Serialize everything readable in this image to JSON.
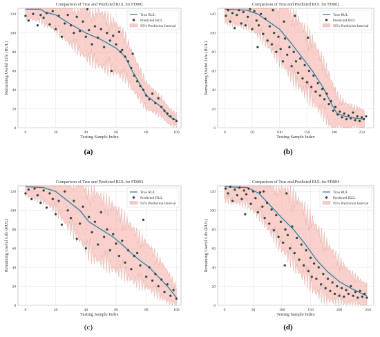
{
  "colors": {
    "true_line": "#2f7fa3",
    "pred_marker": "#3b3b3b",
    "pred_edge": "#1c5b4a",
    "band_fill": "#f4a9a0",
    "band_edge": "#cf8e86",
    "grid": "#e6e6e6"
  },
  "chart_data": [
    {
      "type": "scatter",
      "panel_label": "(a)",
      "title": "Comparison of True and Predicted RUL for FD001",
      "xlabel": "Testing Sample Index",
      "ylabel": "Remaining Useful Life (RUL)",
      "xlim": [
        -5,
        103
      ],
      "ylim": [
        0,
        126
      ],
      "xticks": [
        0,
        20,
        40,
        60,
        80,
        100
      ],
      "yticks": [
        0,
        20,
        40,
        60,
        80,
        100,
        120
      ],
      "grid": true,
      "legend_position": "top-right",
      "legend": [
        "True RUL",
        "Predicted RUL",
        "95% Prediction Interval"
      ],
      "true_rul": [
        [
          0,
          125
        ],
        [
          10,
          125
        ],
        [
          13,
          122
        ],
        [
          20,
          119
        ],
        [
          30,
          109
        ],
        [
          40,
          100
        ],
        [
          50,
          93
        ],
        [
          60,
          84
        ],
        [
          66,
          75
        ],
        [
          70,
          62
        ],
        [
          75,
          48
        ],
        [
          80,
          34
        ],
        [
          85,
          28
        ],
        [
          90,
          22
        ],
        [
          95,
          12
        ],
        [
          100,
          8
        ]
      ],
      "interval_halfwidth": [
        [
          0,
          8
        ],
        [
          15,
          12
        ],
        [
          25,
          16
        ],
        [
          35,
          20
        ],
        [
          45,
          24
        ],
        [
          55,
          24
        ],
        [
          65,
          20
        ],
        [
          75,
          14
        ],
        [
          85,
          10
        ],
        [
          100,
          6
        ]
      ],
      "predicted": [
        [
          0,
          118
        ],
        [
          2,
          113
        ],
        [
          5,
          120
        ],
        [
          8,
          108
        ],
        [
          10,
          119
        ],
        [
          12,
          116
        ],
        [
          14,
          121
        ],
        [
          16,
          109
        ],
        [
          18,
          123
        ],
        [
          20,
          104
        ],
        [
          22,
          118
        ],
        [
          24,
          96
        ],
        [
          26,
          110
        ],
        [
          28,
          119
        ],
        [
          30,
          108
        ],
        [
          32,
          100
        ],
        [
          34,
          117
        ],
        [
          36,
          102
        ],
        [
          38,
          112
        ],
        [
          40,
          96
        ],
        [
          41,
          125
        ],
        [
          42,
          103
        ],
        [
          44,
          88
        ],
        [
          46,
          107
        ],
        [
          48,
          95
        ],
        [
          50,
          104
        ],
        [
          52,
          85
        ],
        [
          54,
          100
        ],
        [
          56,
          92
        ],
        [
          57,
          60
        ],
        [
          58,
          97
        ],
        [
          60,
          88
        ],
        [
          62,
          101
        ],
        [
          63,
          80
        ],
        [
          64,
          82
        ],
        [
          66,
          75
        ],
        [
          68,
          70
        ],
        [
          70,
          63
        ],
        [
          71,
          78
        ],
        [
          72,
          55
        ],
        [
          74,
          49
        ],
        [
          76,
          44
        ],
        [
          78,
          40
        ],
        [
          80,
          34
        ],
        [
          82,
          30
        ],
        [
          84,
          36
        ],
        [
          86,
          26
        ],
        [
          88,
          31
        ],
        [
          90,
          22
        ],
        [
          92,
          18
        ],
        [
          94,
          15
        ],
        [
          96,
          12
        ],
        [
          98,
          9
        ],
        [
          100,
          7
        ]
      ]
    },
    {
      "type": "scatter",
      "panel_label": "(b)",
      "title": "Comparison of True and Predicted RUL for FD002",
      "xlabel": "Testing Sample Index",
      "ylabel": "Remaining Useful Life (RUL)",
      "xlim": [
        -13,
        272
      ],
      "ylim": [
        0,
        126
      ],
      "xticks": [
        0,
        50,
        100,
        150,
        200,
        250
      ],
      "yticks": [
        0,
        20,
        40,
        60,
        80,
        100,
        120
      ],
      "grid": true,
      "legend_position": "top-right",
      "legend": [
        "True RUL",
        "Predicted RUL",
        "95% Prediction Interval"
      ],
      "true_rul": [
        [
          0,
          125
        ],
        [
          40,
          124
        ],
        [
          60,
          120
        ],
        [
          80,
          112
        ],
        [
          100,
          104
        ],
        [
          120,
          90
        ],
        [
          140,
          75
        ],
        [
          160,
          60
        ],
        [
          180,
          42
        ],
        [
          195,
          25
        ],
        [
          205,
          15
        ],
        [
          220,
          12
        ],
        [
          240,
          10
        ],
        [
          255,
          9
        ]
      ],
      "interval_halfwidth": [
        [
          0,
          12
        ],
        [
          40,
          15
        ],
        [
          70,
          20
        ],
        [
          100,
          28
        ],
        [
          130,
          30
        ],
        [
          160,
          28
        ],
        [
          190,
          22
        ],
        [
          220,
          12
        ],
        [
          255,
          8
        ]
      ],
      "predicted": [
        [
          2,
          118
        ],
        [
          6,
          124
        ],
        [
          10,
          112
        ],
        [
          14,
          121
        ],
        [
          18,
          105
        ],
        [
          22,
          119
        ],
        [
          26,
          124
        ],
        [
          30,
          110
        ],
        [
          34,
          122
        ],
        [
          38,
          108
        ],
        [
          42,
          117
        ],
        [
          46,
          125
        ],
        [
          50,
          104
        ],
        [
          54,
          123
        ],
        [
          58,
          113
        ],
        [
          60,
          85
        ],
        [
          62,
          108
        ],
        [
          66,
          120
        ],
        [
          70,
          99
        ],
        [
          74,
          115
        ],
        [
          78,
          92
        ],
        [
          82,
          107
        ],
        [
          86,
          88
        ],
        [
          88,
          124
        ],
        [
          90,
          100
        ],
        [
          94,
          80
        ],
        [
          98,
          96
        ],
        [
          102,
          83
        ],
        [
          106,
          70
        ],
        [
          108,
          112
        ],
        [
          110,
          94
        ],
        [
          114,
          77
        ],
        [
          118,
          85
        ],
        [
          122,
          65
        ],
        [
          126,
          80
        ],
        [
          128,
          118
        ],
        [
          130,
          70
        ],
        [
          134,
          58
        ],
        [
          138,
          73
        ],
        [
          142,
          52
        ],
        [
          146,
          66
        ],
        [
          150,
          48
        ],
        [
          152,
          95
        ],
        [
          154,
          60
        ],
        [
          158,
          43
        ],
        [
          162,
          55
        ],
        [
          166,
          38
        ],
        [
          170,
          47
        ],
        [
          174,
          34
        ],
        [
          178,
          41
        ],
        [
          182,
          30
        ],
        [
          186,
          36
        ],
        [
          190,
          25
        ],
        [
          194,
          28
        ],
        [
          198,
          18
        ],
        [
          202,
          22
        ],
        [
          206,
          14
        ],
        [
          210,
          17
        ],
        [
          214,
          11
        ],
        [
          218,
          15
        ],
        [
          222,
          9
        ],
        [
          226,
          13
        ],
        [
          230,
          10
        ],
        [
          234,
          16
        ],
        [
          238,
          8
        ],
        [
          242,
          12
        ],
        [
          246,
          7
        ],
        [
          250,
          11
        ],
        [
          254,
          9
        ],
        [
          258,
          12
        ]
      ]
    },
    {
      "type": "scatter",
      "panel_label": "(c)",
      "title": "Comparison of True and Predicted RUL for FD003",
      "xlabel": "Testing Sample Index",
      "ylabel": "Remaining Useful Life (RUL)",
      "xlim": [
        -5,
        103
      ],
      "ylim": [
        0,
        126
      ],
      "xticks": [
        0,
        20,
        40,
        60,
        80,
        100
      ],
      "yticks": [
        0,
        20,
        40,
        60,
        80,
        100,
        120
      ],
      "grid": true,
      "legend_position": "top-right",
      "legend": [
        "True RUL",
        "Predicted RUL",
        "95% Prediction Interval"
      ],
      "true_rul": [
        [
          0,
          125
        ],
        [
          12,
          124
        ],
        [
          20,
          120
        ],
        [
          28,
          110
        ],
        [
          36,
          100
        ],
        [
          42,
          88
        ],
        [
          50,
          80
        ],
        [
          58,
          72
        ],
        [
          64,
          64
        ],
        [
          70,
          55
        ],
        [
          76,
          47
        ],
        [
          82,
          40
        ],
        [
          88,
          30
        ],
        [
          94,
          20
        ],
        [
          100,
          8
        ]
      ],
      "interval_halfwidth": [
        [
          0,
          8
        ],
        [
          15,
          14
        ],
        [
          30,
          24
        ],
        [
          45,
          30
        ],
        [
          60,
          28
        ],
        [
          75,
          22
        ],
        [
          90,
          16
        ],
        [
          100,
          10
        ]
      ],
      "predicted": [
        [
          0,
          118
        ],
        [
          2,
          122
        ],
        [
          4,
          112
        ],
        [
          6,
          123
        ],
        [
          8,
          116
        ],
        [
          10,
          108
        ],
        [
          12,
          121
        ],
        [
          14,
          103
        ],
        [
          16,
          118
        ],
        [
          18,
          112
        ],
        [
          20,
          96
        ],
        [
          22,
          110
        ],
        [
          24,
          85
        ],
        [
          26,
          120
        ],
        [
          28,
          100
        ],
        [
          30,
          92
        ],
        [
          32,
          110
        ],
        [
          34,
          70
        ],
        [
          36,
          86
        ],
        [
          38,
          104
        ],
        [
          40,
          60
        ],
        [
          42,
          93
        ],
        [
          44,
          77
        ],
        [
          46,
          88
        ],
        [
          48,
          64
        ],
        [
          50,
          98
        ],
        [
          52,
          72
        ],
        [
          54,
          80
        ],
        [
          56,
          58
        ],
        [
          58,
          75
        ],
        [
          60,
          65
        ],
        [
          62,
          52
        ],
        [
          64,
          68
        ],
        [
          66,
          45
        ],
        [
          68,
          58
        ],
        [
          70,
          38
        ],
        [
          72,
          52
        ],
        [
          74,
          55
        ],
        [
          76,
          42
        ],
        [
          78,
          90
        ],
        [
          80,
          30
        ],
        [
          82,
          40
        ],
        [
          84,
          26
        ],
        [
          86,
          33
        ],
        [
          88,
          20
        ],
        [
          90,
          27
        ],
        [
          92,
          14
        ],
        [
          94,
          22
        ],
        [
          96,
          10
        ],
        [
          98,
          16
        ],
        [
          100,
          7
        ]
      ]
    },
    {
      "type": "scatter",
      "panel_label": "(d)",
      "title": "Comparison of True and Predicted RUL for FD004",
      "xlabel": "Testing Sample Index",
      "ylabel": "Remaining Useful Life (RUL)",
      "xlim": [
        -12,
        260
      ],
      "ylim": [
        0,
        126
      ],
      "xticks": [
        0,
        50,
        100,
        150,
        200,
        250
      ],
      "yticks": [
        0,
        20,
        40,
        60,
        80,
        100,
        120
      ],
      "grid": true,
      "legend_position": "top-right",
      "legend": [
        "True RUL",
        "Predicted RUL",
        "95% Prediction Interval"
      ],
      "true_rul": [
        [
          0,
          125
        ],
        [
          40,
          124
        ],
        [
          60,
          118
        ],
        [
          80,
          105
        ],
        [
          100,
          92
        ],
        [
          120,
          80
        ],
        [
          140,
          65
        ],
        [
          160,
          48
        ],
        [
          180,
          35
        ],
        [
          200,
          25
        ],
        [
          220,
          18
        ],
        [
          240,
          12
        ],
        [
          248,
          10
        ]
      ],
      "interval_halfwidth": [
        [
          0,
          12
        ],
        [
          40,
          16
        ],
        [
          70,
          22
        ],
        [
          100,
          28
        ],
        [
          130,
          32
        ],
        [
          160,
          30
        ],
        [
          190,
          22
        ],
        [
          220,
          14
        ],
        [
          248,
          10
        ]
      ],
      "predicted": [
        [
          2,
          123
        ],
        [
          6,
          118
        ],
        [
          10,
          125
        ],
        [
          14,
          110
        ],
        [
          18,
          122
        ],
        [
          22,
          116
        ],
        [
          26,
          124
        ],
        [
          30,
          112
        ],
        [
          34,
          121
        ],
        [
          36,
          96
        ],
        [
          38,
          117
        ],
        [
          42,
          123
        ],
        [
          46,
          107
        ],
        [
          50,
          120
        ],
        [
          54,
          113
        ],
        [
          58,
          98
        ],
        [
          62,
          119
        ],
        [
          66,
          104
        ],
        [
          68,
          120
        ],
        [
          70,
          92
        ],
        [
          74,
          108
        ],
        [
          78,
          86
        ],
        [
          82,
          101
        ],
        [
          86,
          79
        ],
        [
          90,
          95
        ],
        [
          94,
          72
        ],
        [
          98,
          88
        ],
        [
          102,
          66
        ],
        [
          105,
          42
        ],
        [
          106,
          80
        ],
        [
          108,
          118
        ],
        [
          110,
          74
        ],
        [
          114,
          60
        ],
        [
          118,
          83
        ],
        [
          122,
          55
        ],
        [
          126,
          71
        ],
        [
          130,
          48
        ],
        [
          134,
          64
        ],
        [
          138,
          42
        ],
        [
          142,
          58
        ],
        [
          146,
          36
        ],
        [
          150,
          50
        ],
        [
          152,
          30
        ],
        [
          156,
          44
        ],
        [
          160,
          28
        ],
        [
          164,
          40
        ],
        [
          168,
          22
        ],
        [
          172,
          33
        ],
        [
          176,
          18
        ],
        [
          180,
          28
        ],
        [
          184,
          15
        ],
        [
          188,
          24
        ],
        [
          192,
          12
        ],
        [
          196,
          20
        ],
        [
          200,
          10
        ],
        [
          204,
          18
        ],
        [
          208,
          9
        ],
        [
          212,
          16
        ],
        [
          216,
          12
        ],
        [
          220,
          20
        ],
        [
          224,
          10
        ],
        [
          228,
          14
        ],
        [
          232,
          8
        ],
        [
          236,
          15
        ],
        [
          240,
          9
        ],
        [
          244,
          12
        ],
        [
          248,
          8
        ]
      ]
    }
  ]
}
